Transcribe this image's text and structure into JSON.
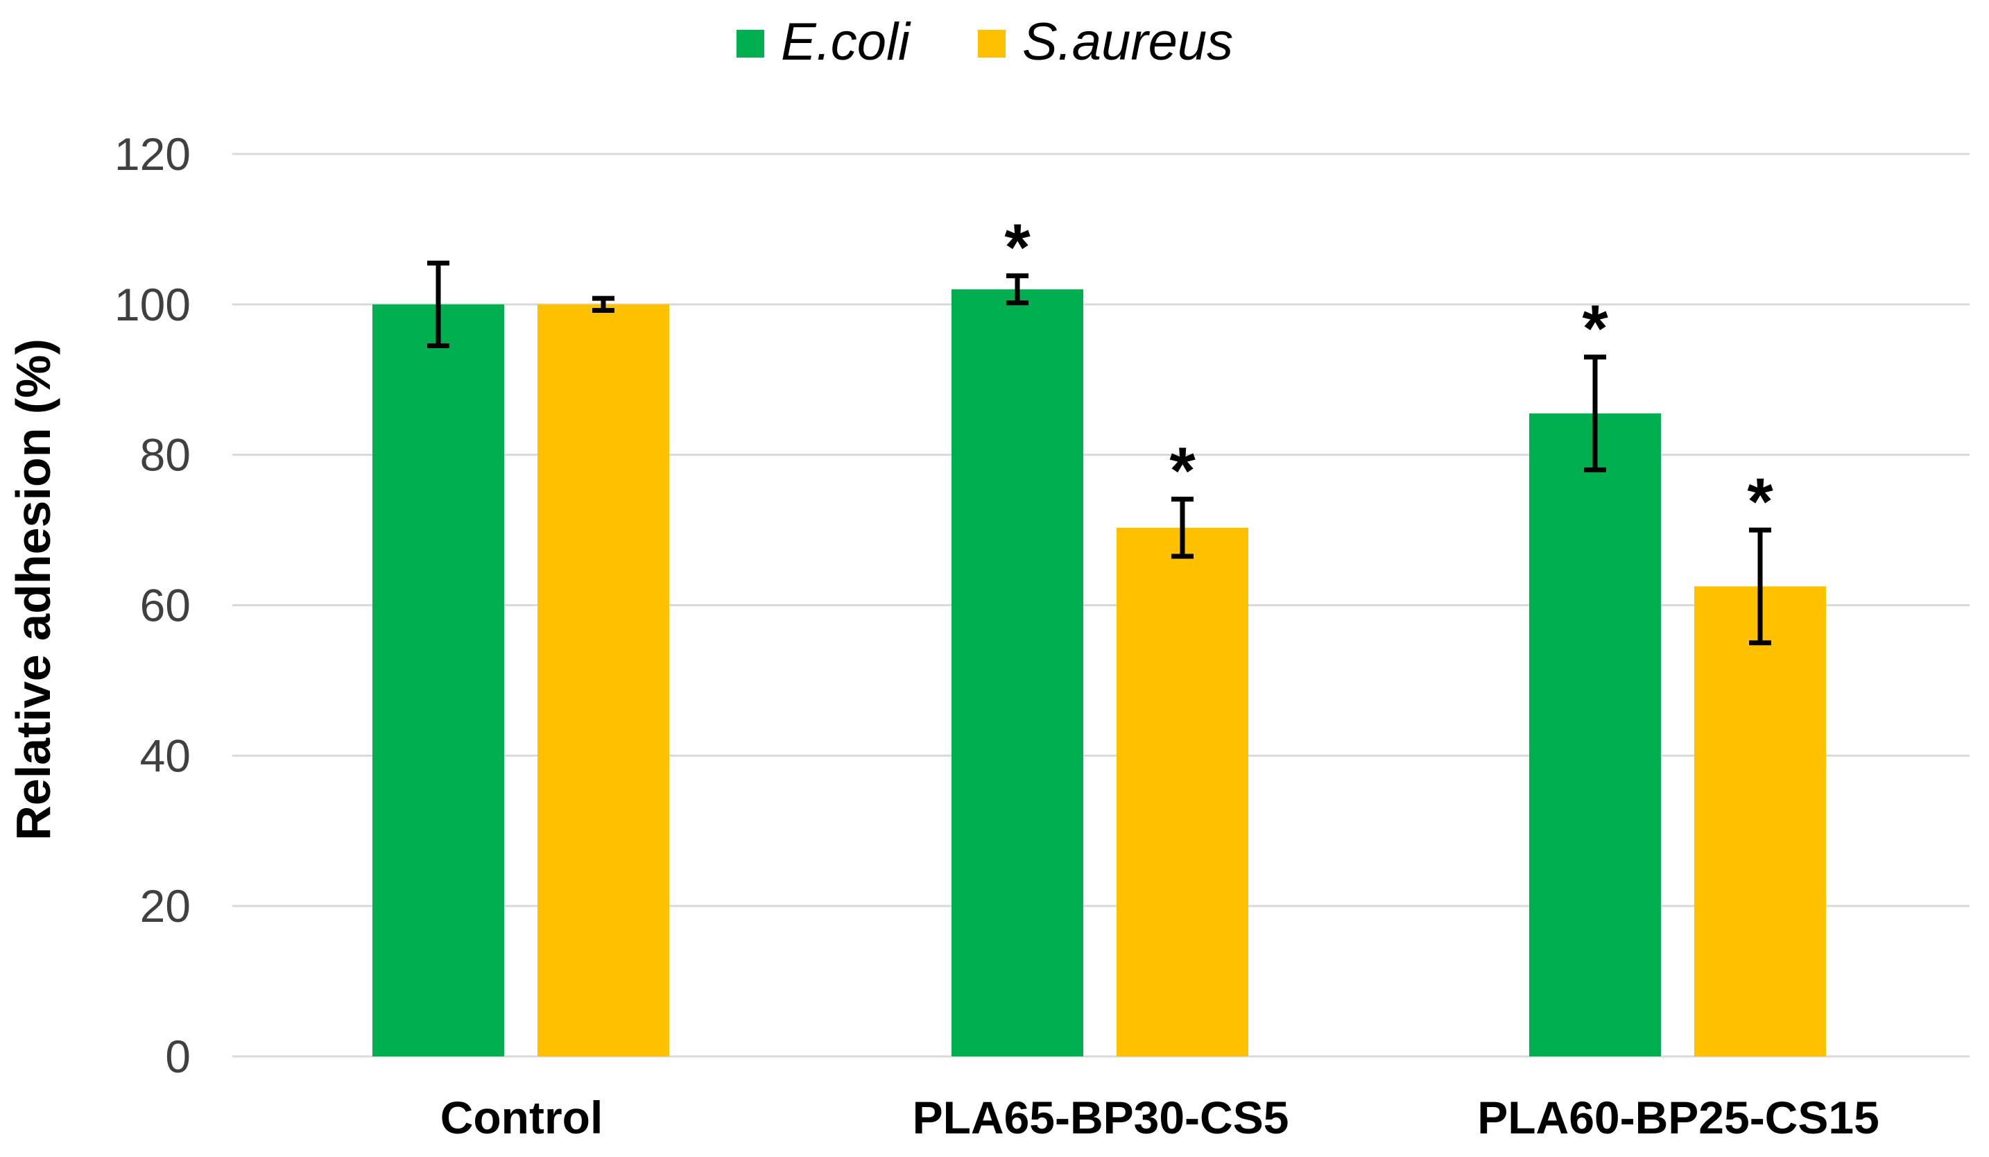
{
  "chart_data": {
    "type": "bar",
    "title": "",
    "xlabel": "",
    "ylabel": "Relative adhesion (%)",
    "ylim": [
      0,
      120
    ],
    "yticks": [
      0,
      20,
      40,
      60,
      80,
      100,
      120
    ],
    "grid": true,
    "legend_position": "top-center",
    "categories": [
      "Control",
      "PLA65-BP30-CS5",
      "PLA60-BP25-CS15"
    ],
    "series": [
      {
        "name": "E.coli",
        "color": "#00B050",
        "values": [
          100,
          102,
          85.5
        ],
        "errors": [
          5.5,
          1.8,
          7.5
        ],
        "significance": [
          "",
          "*",
          "*"
        ]
      },
      {
        "name": "S.aureus",
        "color": "#FFC000",
        "values": [
          100,
          70.3,
          62.5
        ],
        "errors": [
          0.8,
          3.8,
          7.5
        ],
        "significance": [
          "",
          "*",
          "*"
        ]
      }
    ]
  }
}
